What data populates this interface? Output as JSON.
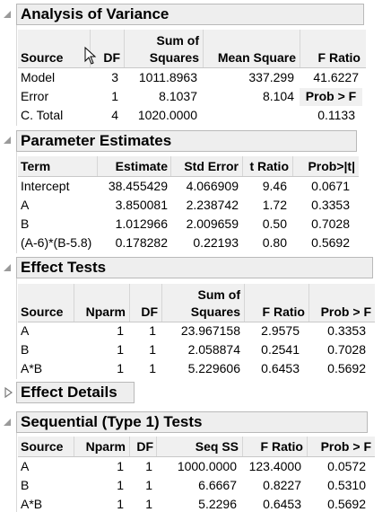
{
  "anova": {
    "title": "Analysis of Variance",
    "headers": {
      "source": "Source",
      "df": "DF",
      "ss_top": "Sum of",
      "ss_bottom": "Squares",
      "ms": "Mean Square",
      "f": "F Ratio"
    },
    "rows": [
      {
        "source": "Model",
        "df": "3",
        "ss": "1011.8963",
        "ms": "337.299",
        "f": "41.6227"
      },
      {
        "source": "Error",
        "df": "1",
        "ss": "8.1037",
        "ms": "8.104",
        "f": "Prob > F"
      },
      {
        "source": "C. Total",
        "df": "4",
        "ss": "1020.0000",
        "ms": "",
        "f": "0.1133"
      }
    ]
  },
  "params": {
    "title": "Parameter Estimates",
    "headers": {
      "term": "Term",
      "estimate": "Estimate",
      "stderr": "Std Error",
      "t": "t Ratio",
      "p": "Prob>|t|"
    },
    "rows": [
      {
        "term": "Intercept",
        "estimate": "38.455429",
        "stderr": "4.066909",
        "t": "9.46",
        "p": "0.0671"
      },
      {
        "term": "A",
        "estimate": "3.850081",
        "stderr": "2.238742",
        "t": "1.72",
        "p": "0.3353"
      },
      {
        "term": "B",
        "estimate": "1.012966",
        "stderr": "2.009659",
        "t": "0.50",
        "p": "0.7028"
      },
      {
        "term": "(A-6)*(B-5.8)",
        "estimate": "0.178282",
        "stderr": "0.22193",
        "t": "0.80",
        "p": "0.5692"
      }
    ]
  },
  "effects": {
    "title": "Effect Tests",
    "headers": {
      "source": "Source",
      "nparm": "Nparm",
      "df": "DF",
      "ss_top": "Sum of",
      "ss_bottom": "Squares",
      "f": "F Ratio",
      "p": "Prob > F"
    },
    "rows": [
      {
        "source": "A",
        "nparm": "1",
        "df": "1",
        "ss": "23.967158",
        "f": "2.9575",
        "p": "0.3353"
      },
      {
        "source": "B",
        "nparm": "1",
        "df": "1",
        "ss": "2.058874",
        "f": "0.2541",
        "p": "0.7028"
      },
      {
        "source": "A*B",
        "nparm": "1",
        "df": "1",
        "ss": "5.229606",
        "f": "0.6453",
        "p": "0.5692"
      }
    ]
  },
  "effect_details": {
    "title": "Effect Details"
  },
  "sequential": {
    "title": "Sequential (Type 1) Tests",
    "headers": {
      "source": "Source",
      "nparm": "Nparm",
      "df": "DF",
      "ss": "Seq SS",
      "f": "F Ratio",
      "p": "Prob > F"
    },
    "rows": [
      {
        "source": "A",
        "nparm": "1",
        "df": "1",
        "ss": "1000.0000",
        "f": "123.4000",
        "p": "0.0572"
      },
      {
        "source": "B",
        "nparm": "1",
        "df": "1",
        "ss": "6.6667",
        "f": "0.8227",
        "p": "0.5310"
      },
      {
        "source": "A*B",
        "nparm": "1",
        "df": "1",
        "ss": "5.2296",
        "f": "0.6453",
        "p": "0.5692"
      }
    ]
  },
  "icons": {
    "expanded": "disclosure-expanded-icon",
    "collapsed": "disclosure-collapsed-icon",
    "cursor": "mouse-pointer-icon"
  }
}
